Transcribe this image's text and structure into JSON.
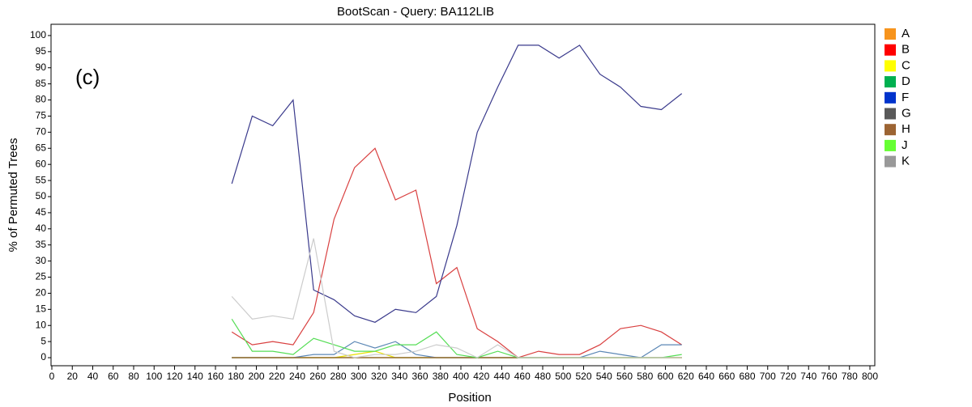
{
  "chart_data": {
    "type": "line",
    "title": "BootScan - Query: BA112LIB",
    "x_label": "Position",
    "y_label": "% of Permuted Trees",
    "annotation": "(c)",
    "legend_position": "right",
    "xlim": [
      0,
      800
    ],
    "ylim": [
      -2.5,
      103.5
    ],
    "xticks": [
      0,
      20,
      40,
      60,
      80,
      100,
      120,
      140,
      160,
      180,
      200,
      220,
      240,
      260,
      280,
      300,
      320,
      340,
      360,
      380,
      400,
      420,
      440,
      460,
      480,
      500,
      520,
      540,
      560,
      580,
      600,
      620,
      640,
      660,
      680,
      700,
      720,
      740,
      760,
      780,
      800
    ],
    "yticks": [
      0,
      5,
      10,
      15,
      20,
      25,
      30,
      35,
      40,
      45,
      50,
      55,
      60,
      65,
      70,
      75,
      80,
      85,
      90,
      95,
      100
    ],
    "x": [
      176,
      196,
      216,
      236,
      256,
      276,
      296,
      316,
      336,
      356,
      376,
      396,
      416,
      436,
      456,
      476,
      496,
      516,
      536,
      556,
      576,
      596,
      616
    ],
    "series": [
      {
        "name": "A",
        "color": "#f7941d",
        "line_color": "#f7941d",
        "values": [
          0,
          0,
          0,
          0,
          0,
          0,
          0,
          0,
          0,
          0,
          0,
          0,
          0,
          0,
          0,
          0,
          0,
          0,
          0,
          0,
          0,
          0,
          0
        ]
      },
      {
        "name": "B",
        "color": "#ff0000",
        "line_color": "#d94040",
        "values": [
          8,
          4,
          5,
          4,
          14,
          43,
          59,
          65,
          49,
          52,
          23,
          28,
          9,
          5,
          0,
          2,
          1,
          1,
          4,
          9,
          10,
          8,
          4
        ]
      },
      {
        "name": "C",
        "color": "#ffff00",
        "line_color": "#e8e000",
        "values": [
          0,
          0,
          0,
          0,
          0,
          0,
          1,
          2,
          0,
          0,
          0,
          0,
          0,
          0,
          0,
          0,
          0,
          0,
          0,
          0,
          0,
          0,
          0
        ]
      },
      {
        "name": "D",
        "color": "#00b050",
        "line_color": "#2aa050",
        "values": [
          0,
          0,
          0,
          0,
          0,
          0,
          0,
          0,
          0,
          0,
          0,
          0,
          0,
          0,
          0,
          0,
          0,
          0,
          0,
          0,
          0,
          0,
          0
        ]
      },
      {
        "name": "F",
        "color": "#0033cc",
        "line_color": "#3a3a8c",
        "values": [
          54,
          75,
          72,
          80,
          21,
          18,
          13,
          11,
          15,
          14,
          19,
          41,
          70,
          84,
          97,
          97,
          93,
          97,
          88,
          84,
          78,
          77,
          82
        ]
      },
      {
        "name": "G",
        "color": "#595959",
        "line_color": "#5b87b5",
        "values": [
          0,
          0,
          0,
          0,
          1,
          1,
          5,
          3,
          5,
          1,
          0,
          0,
          0,
          0,
          0,
          0,
          0,
          0,
          2,
          1,
          0,
          4,
          4
        ]
      },
      {
        "name": "H",
        "color": "#9c6433",
        "line_color": "#9c6433",
        "values": [
          0,
          0,
          0,
          0,
          0,
          0,
          0,
          0,
          0,
          0,
          0,
          0,
          0,
          0,
          0,
          0,
          0,
          0,
          0,
          0,
          0,
          0,
          0
        ]
      },
      {
        "name": "J",
        "color": "#66ff33",
        "line_color": "#55dd55",
        "values": [
          12,
          2,
          2,
          1,
          6,
          4,
          2,
          2,
          4,
          4,
          8,
          1,
          0,
          2,
          0,
          0,
          0,
          0,
          0,
          0,
          0,
          0,
          1
        ]
      },
      {
        "name": "K",
        "color": "#999999",
        "line_color": "#cccccc",
        "values": [
          19,
          12,
          13,
          12,
          37,
          2,
          0,
          1,
          1,
          2,
          4,
          3,
          0,
          4,
          0,
          0,
          0,
          0,
          0,
          0,
          0,
          0,
          0
        ]
      }
    ]
  }
}
